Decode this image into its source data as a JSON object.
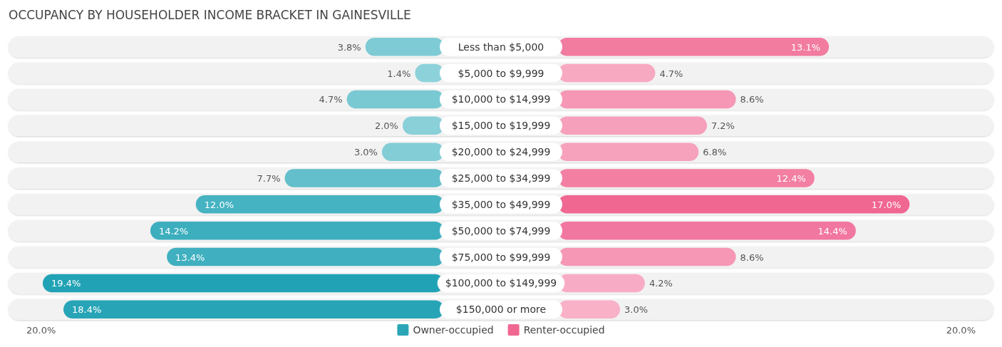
{
  "chart_data": [
    {
      "type": "bar",
      "orientation": "horizontal",
      "title": "OCCUPANCY BY HOUSEHOLDER INCOME BRACKET IN GAINESVILLE",
      "categories": [
        "Less than $5,000",
        "$5,000 to $9,999",
        "$10,000 to $14,999",
        "$15,000 to $19,999",
        "$20,000 to $24,999",
        "$25,000 to $34,999",
        "$35,000 to $49,999",
        "$50,000 to $74,999",
        "$75,000 to $99,999",
        "$100,000 to $149,999",
        "$150,000 or more"
      ],
      "series": [
        {
          "name": "Owner-occupied",
          "color": "#2aa6b7",
          "values": [
            3.8,
            1.4,
            4.7,
            2.0,
            3.0,
            7.7,
            12.0,
            14.2,
            13.4,
            19.4,
            18.4
          ],
          "colors": [
            "#7ecbd5",
            "#8dd2da",
            "#79c9d3",
            "#89d0d8",
            "#83cdd6",
            "#62bfcb",
            "#46b3c2",
            "#3caebe",
            "#40b0c0",
            "#22a3b5",
            "#27a5b7"
          ],
          "value_labels": [
            "3.8%",
            "1.4%",
            "4.7%",
            "2.0%",
            "3.0%",
            "7.7%",
            "12.0%",
            "14.2%",
            "13.4%",
            "19.4%",
            "18.4%"
          ]
        }
      ],
      "annotations": [
        "20.0%"
      ],
      "legend": "bottom"
    },
    {
      "type": "bar",
      "orientation": "horizontal",
      "categories": [
        null,
        null,
        null,
        null,
        null,
        null,
        null,
        null,
        null,
        null,
        null
      ],
      "series": [
        {
          "name": "Renter-occupied",
          "color": "#f06792",
          "values": [
            13.1,
            4.7,
            8.6,
            7.2,
            6.8,
            12.4,
            17.0,
            14.4,
            8.6,
            4.2,
            3.0
          ],
          "colors": [
            "#f27ba0",
            "#f8a9c2",
            "#f597b5",
            "#f6a0bb",
            "#f6a2bc",
            "#f37fa3",
            "#f06792",
            "#f277a0",
            "#f597b5",
            "#f8abc4",
            "#f9b1c8"
          ],
          "value_labels": [
            "13.1%",
            "4.7%",
            "8.6%",
            "7.2%",
            "6.8%",
            "12.4%",
            "17.0%",
            "14.4%",
            "8.6%",
            "4.2%",
            "3.0%"
          ]
        }
      ],
      "annotations": [
        "20.0%"
      ],
      "legend": "bottom"
    }
  ]
}
